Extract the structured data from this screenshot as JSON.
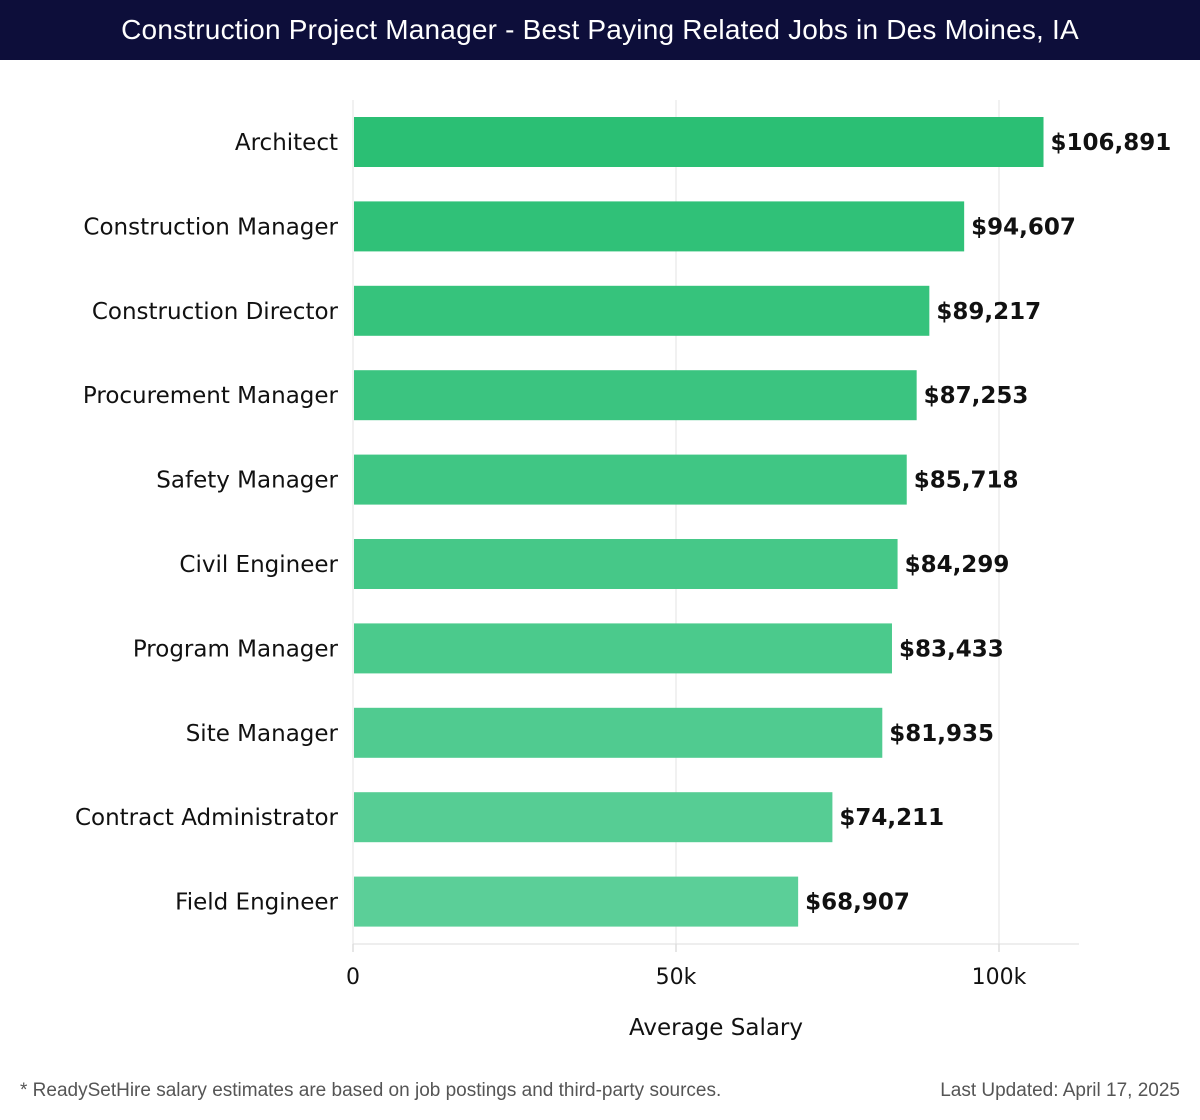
{
  "header": {
    "title": "Construction Project Manager - Best Paying Related Jobs in Des Moines, IA"
  },
  "footer": {
    "note": "* ReadySetHire salary estimates are based on job postings and third-party sources.",
    "updated": "Last Updated: April 17, 2025"
  },
  "colors": {
    "title_bg": "#0d0e3a",
    "bar_top": "#2bbf74",
    "bar_bottom": "#5bcf98",
    "grid": "#e3e3e3"
  },
  "chart_data": {
    "type": "bar",
    "orientation": "horizontal",
    "categories": [
      "Architect",
      "Construction Manager",
      "Construction Director",
      "Procurement Manager",
      "Safety Manager",
      "Civil Engineer",
      "Program Manager",
      "Site Manager",
      "Contract Administrator",
      "Field Engineer"
    ],
    "values": [
      106891,
      94607,
      89217,
      87253,
      85718,
      84299,
      83433,
      81935,
      74211,
      68907
    ],
    "value_labels": [
      "$106,891",
      "$94,607",
      "$89,217",
      "$87,253",
      "$85,718",
      "$84,299",
      "$83,433",
      "$81,935",
      "$74,211",
      "$68,907"
    ],
    "xticks": [
      0,
      50000,
      100000
    ],
    "xtick_labels": [
      "0",
      "50k",
      "100k"
    ],
    "xlabel": "Average Salary",
    "ylabel": "",
    "xlim": [
      0,
      112000
    ],
    "grid": true
  }
}
